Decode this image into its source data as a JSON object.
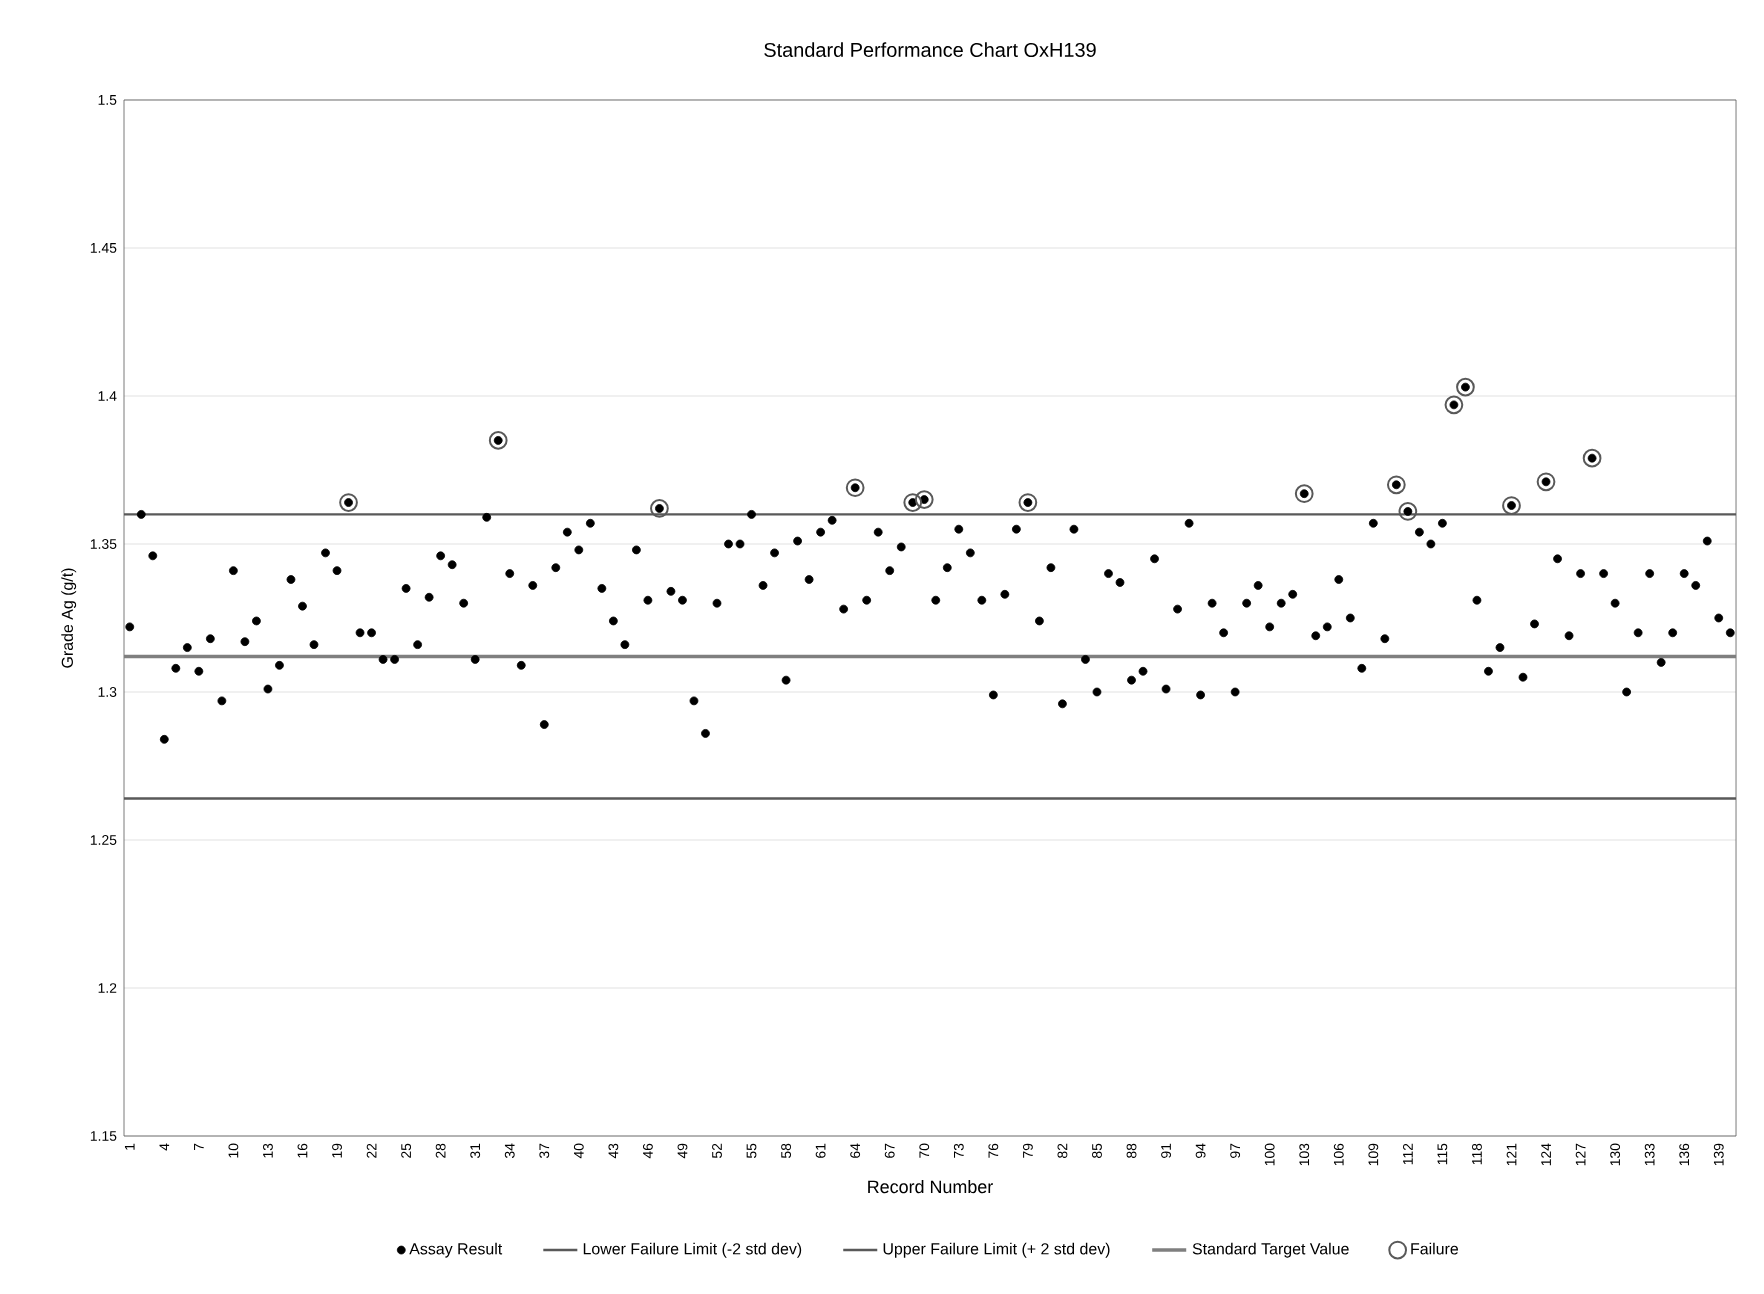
{
  "chart_data": {
    "type": "scatter",
    "title": "Standard Performance Chart OxH139",
    "xlabel": "Record Number",
    "ylabel": "Grade Ag (g/t)",
    "categories": [
      "1",
      null,
      null,
      "4",
      null,
      null,
      "7",
      null,
      null,
      "10",
      null,
      null,
      "13",
      null,
      null,
      "16",
      null,
      null,
      "19",
      null,
      null,
      "22",
      null,
      null,
      "25",
      null,
      null,
      "28",
      null,
      null,
      "31",
      null,
      null,
      "34",
      null,
      null,
      "37",
      null,
      null,
      "40",
      null,
      null,
      "43",
      null,
      null,
      "46",
      null,
      null,
      "49",
      null,
      null,
      "52",
      null,
      null,
      "55",
      null,
      null,
      "58",
      null,
      null,
      "61",
      null,
      null,
      "64",
      null,
      null,
      "67",
      null,
      null,
      "70",
      null,
      null,
      "73",
      null,
      null,
      "76",
      null,
      null,
      "79",
      null,
      null,
      "82",
      null,
      null,
      "85",
      null,
      null,
      "88",
      null,
      null,
      "91",
      null,
      null,
      "94",
      null,
      null,
      "97",
      null,
      null,
      "100",
      null,
      null,
      "103",
      null,
      null,
      "106",
      null,
      null,
      "109",
      null,
      null,
      "112",
      null,
      null,
      "115",
      null,
      null,
      "118",
      null,
      null,
      "121",
      null,
      null,
      "124",
      null,
      null,
      "127",
      null,
      null,
      "130",
      null,
      null,
      "133",
      null,
      null,
      "136",
      null,
      null,
      "139",
      null
    ],
    "series": [
      {
        "name": "Assay Result",
        "color": "#000000",
        "marker": "circle",
        "values": [
          1.322,
          1.36,
          1.346,
          1.284,
          1.308,
          1.315,
          1.307,
          1.318,
          1.297,
          1.341,
          1.317,
          1.324,
          1.301,
          1.309,
          1.338,
          1.329,
          1.316,
          1.347,
          1.341,
          1.364,
          1.32,
          1.32,
          1.311,
          1.311,
          1.335,
          1.316,
          1.332,
          1.346,
          1.343,
          1.33,
          1.311,
          1.359,
          1.385,
          1.34,
          1.309,
          1.336,
          1.289,
          1.342,
          1.354,
          1.348,
          1.357,
          1.335,
          1.324,
          1.316,
          1.348,
          1.331,
          1.362,
          1.334,
          1.331,
          1.297,
          1.286,
          1.33,
          1.35,
          1.35,
          1.36,
          1.336,
          1.347,
          1.304,
          1.351,
          1.338,
          1.354,
          1.358,
          1.328,
          1.369,
          1.331,
          1.354,
          1.341,
          1.349,
          1.364,
          1.365,
          1.331,
          1.342,
          1.355,
          1.347,
          1.331,
          1.299,
          1.333,
          1.355,
          1.364,
          1.324,
          1.342,
          1.296,
          1.355,
          1.311,
          1.3,
          1.34,
          1.337,
          1.304,
          1.307,
          1.345,
          1.301,
          1.328,
          1.357,
          1.299,
          1.33,
          1.32,
          1.3,
          1.33,
          1.336,
          1.322,
          1.33,
          1.333,
          1.367,
          1.319,
          1.322,
          1.338,
          1.325,
          1.308,
          1.357,
          1.318,
          1.37,
          1.361,
          1.354,
          1.35,
          1.357,
          1.397,
          1.403,
          1.331,
          1.307,
          1.315,
          1.363,
          1.305,
          1.323,
          1.371,
          1.345,
          1.319,
          1.34,
          1.379,
          1.34,
          1.33,
          1.3,
          1.32,
          1.34,
          1.31,
          1.32,
          1.34,
          1.336,
          1.351,
          1.325,
          1.32
        ]
      },
      {
        "name": "Failure",
        "color": "#595959",
        "marker": "circle",
        "values": [
          null,
          null,
          null,
          null,
          null,
          null,
          null,
          null,
          null,
          null,
          null,
          null,
          null,
          null,
          null,
          null,
          null,
          null,
          null,
          1.364,
          null,
          null,
          null,
          null,
          null,
          null,
          null,
          null,
          null,
          null,
          null,
          null,
          1.385,
          null,
          null,
          null,
          null,
          null,
          null,
          null,
          null,
          null,
          null,
          null,
          null,
          null,
          1.362,
          null,
          null,
          null,
          null,
          null,
          null,
          null,
          null,
          null,
          null,
          null,
          null,
          null,
          null,
          null,
          null,
          1.369,
          null,
          null,
          null,
          null,
          1.364,
          1.365,
          null,
          null,
          null,
          null,
          null,
          null,
          null,
          null,
          1.364,
          null,
          null,
          null,
          null,
          null,
          null,
          null,
          null,
          null,
          null,
          null,
          null,
          null,
          null,
          null,
          null,
          null,
          null,
          null,
          null,
          null,
          null,
          null,
          1.367,
          null,
          null,
          null,
          null,
          null,
          null,
          null,
          1.37,
          1.361,
          null,
          null,
          null,
          1.397,
          1.403,
          null,
          null,
          null,
          1.363,
          null,
          null,
          1.371,
          null,
          null,
          null,
          1.379,
          null,
          null,
          null,
          null,
          null,
          null,
          null,
          null,
          null,
          null,
          null,
          null
        ]
      }
    ],
    "ref_lines": [
      {
        "axis": "y",
        "value": 1.264,
        "label": "Lower Failure Limit (-2 std dev)",
        "color": "#595959"
      },
      {
        "axis": "y",
        "value": 1.36,
        "label": "Upper Failure Limit (+ 2 std dev)",
        "color": "#595959"
      },
      {
        "axis": "y",
        "value": 1.312,
        "label": "Standard Target Value",
        "color": "#7f7f7f"
      }
    ],
    "ylim": [
      1.15,
      1.5
    ],
    "yticks": [
      1.15,
      1.2,
      1.25,
      1.3,
      1.35,
      1.4,
      1.45,
      1.5
    ],
    "grid": "y",
    "legend": "bottom"
  }
}
